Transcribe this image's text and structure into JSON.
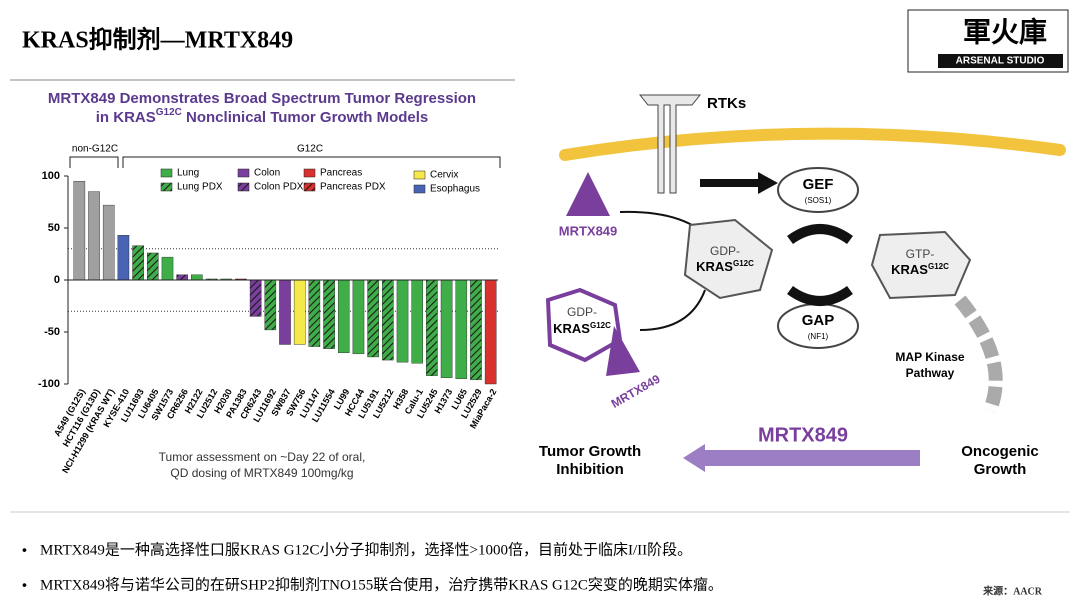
{
  "slide": {
    "title": "KRAS抑制剂—MRTX849",
    "logo": "軍火庫",
    "logo_sub": "ARSENAL STUDIO",
    "bullets": [
      "MRTX849是一种高选择性口服KRAS G12C小分子抑制剂，选择性>1000倍，目前处于临床I/II阶段。",
      "MRTX849将与诺华公司的在研SHP2抑制剂TNO155联合使用，治疗携带KRAS G12C突变的晚期实体瘤。"
    ],
    "source": "来源：AACR"
  },
  "chart_data": {
    "type": "bar",
    "title": [
      "MRTX849 Demonstrates Broad Spectrum Tumor Regression",
      "in KRAS",
      "G12C",
      " Nonclinical Tumor Growth Models"
    ],
    "group_labels": [
      "non-G12C",
      "G12C"
    ],
    "categories": [
      "A549 (G12S)",
      "HCT116 (G13D)",
      "NCI-H1299 (KRAS WT)",
      "KYSE-410",
      "LU11693",
      "LU6405",
      "SW1573",
      "CR6256",
      "H2122",
      "LU2512",
      "H2030",
      "PA1383",
      "CR6243",
      "LU11692",
      "SW837",
      "SW756",
      "LU1147",
      "LU11554",
      "LU99",
      "HCC44",
      "LU5191",
      "LU5212",
      "H358",
      "Calu-1",
      "LU5245",
      "H1373",
      "LU65",
      "LU2529",
      "MiaPaca-2"
    ],
    "values": [
      95,
      85,
      72,
      43,
      33,
      26,
      22,
      5,
      5,
      1,
      1,
      1,
      -35,
      -48,
      -62,
      -62,
      -64,
      -66,
      -70,
      -71,
      -74,
      -77,
      -79,
      -80,
      -92,
      -94,
      -95,
      -96,
      -100
    ],
    "colors": [
      "#a0a0a0",
      "#a0a0a0",
      "#a0a0a0",
      "#4a64b4",
      "#3fae49",
      "#3fae49",
      "#3fae49",
      "#7a3f9d",
      "#3fae49",
      "#3fae49",
      "#3fae49",
      "#d8312e",
      "#7a3f9d",
      "#3fae49",
      "#7a3f9d",
      "#f5e84a",
      "#3fae49",
      "#3fae49",
      "#3fae49",
      "#3fae49",
      "#3fae49",
      "#3fae49",
      "#3fae49",
      "#3fae49",
      "#3fae49",
      "#3fae49",
      "#3fae49",
      "#3fae49",
      "#d8312e"
    ],
    "hatched": [
      false,
      false,
      false,
      false,
      true,
      true,
      false,
      true,
      false,
      true,
      false,
      true,
      true,
      true,
      false,
      false,
      true,
      true,
      false,
      false,
      true,
      true,
      false,
      false,
      true,
      false,
      false,
      true,
      false
    ],
    "legend": [
      {
        "name": "Lung",
        "color": "#3fae49",
        "hatched": false
      },
      {
        "name": "Lung PDX",
        "color": "#3fae49",
        "hatched": true
      },
      {
        "name": "Colon",
        "color": "#7a3f9d",
        "hatched": false
      },
      {
        "name": "Colon PDX",
        "color": "#7a3f9d",
        "hatched": true
      },
      {
        "name": "Pancreas",
        "color": "#d8312e",
        "hatched": false
      },
      {
        "name": "Pancreas PDX",
        "color": "#d8312e",
        "hatched": true
      },
      {
        "name": "Cervix",
        "color": "#f5e84a",
        "hatched": false
      },
      {
        "name": "Esophagus",
        "color": "#4a64b4",
        "hatched": false
      }
    ],
    "ylim": [
      -100,
      100
    ],
    "yticks": [
      -100,
      -50,
      0,
      50,
      100
    ],
    "reference_lines": [
      30,
      -30
    ],
    "footnote": [
      "Tumor assessment on ~Day 22 of oral,",
      "QD dosing of MRTX849 100mg/kg"
    ]
  },
  "diagram": {
    "rtks": "RTKs",
    "gef": "GEF",
    "sos1": "(SOS1)",
    "gap": "GAP",
    "nf1": "(NF1)",
    "gdp": "GDP-",
    "gtp": "GTP-",
    "kras": "KRAS",
    "g12c": "G12C",
    "drug": "MRTX849",
    "map": [
      "MAP Kinase",
      "Pathway"
    ],
    "inhibition": [
      "Tumor Growth",
      "Inhibition"
    ],
    "oncogenic": [
      "Oncogenic",
      "Growth"
    ]
  }
}
